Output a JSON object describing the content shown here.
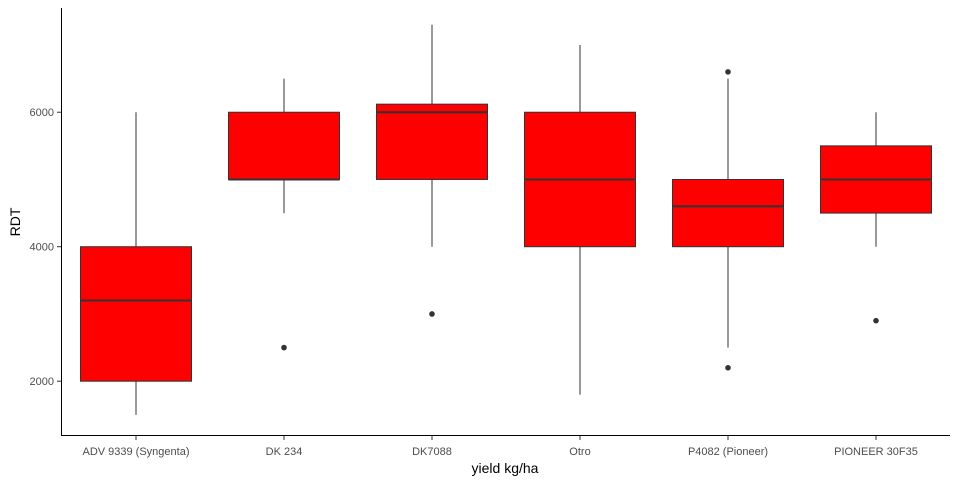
{
  "chart_data": {
    "type": "boxplot",
    "xlabel": "yield kg/ha",
    "ylabel": "RDT",
    "ylim": [
      1200,
      7550
    ],
    "yticks": [
      2000,
      4000,
      6000
    ],
    "grid": false,
    "legend": "none",
    "fill_color": "#FF0000",
    "line_color": "#333333",
    "categories": [
      "ADV 9339 (Syngenta)",
      "DK 234",
      "DK7088",
      "Otro",
      "P4082 (Pioneer)",
      "PIONEER 30F35"
    ],
    "boxes": [
      {
        "category": "ADV 9339 (Syngenta)",
        "min": 1500,
        "q1": 2000,
        "median": 3200,
        "q3": 4000,
        "max": 6000,
        "outliers": []
      },
      {
        "category": "DK 234",
        "min": 4500,
        "q1": 5000,
        "median": 5000,
        "q3": 6000,
        "max": 6500,
        "outliers": [
          2500
        ]
      },
      {
        "category": "DK7088",
        "min": 4000,
        "q1": 5000,
        "median": 6000,
        "q3": 6120,
        "max": 7300,
        "outliers": [
          3000
        ]
      },
      {
        "category": "Otro",
        "min": 1800,
        "q1": 4000,
        "median": 5000,
        "q3": 6000,
        "max": 7000,
        "outliers": []
      },
      {
        "category": "P4082 (Pioneer)",
        "min": 2500,
        "q1": 4000,
        "median": 4600,
        "q3": 5000,
        "max": 6500,
        "outliers": [
          2200,
          6600
        ]
      },
      {
        "category": "PIONEER 30F35",
        "min": 4000,
        "q1": 4500,
        "median": 5000,
        "q3": 5500,
        "max": 6000,
        "outliers": [
          2900
        ]
      }
    ]
  }
}
